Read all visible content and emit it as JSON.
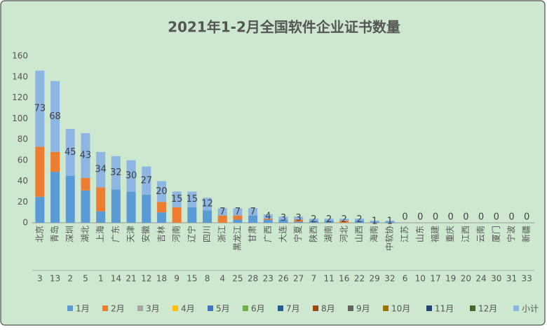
{
  "chart_data": {
    "type": "stacked_bar",
    "title": "2021年1-2月全国软件企业证书数量",
    "categories": [
      "北京",
      "青岛",
      "深圳",
      "湖北",
      "上海",
      "广东",
      "天津",
      "安徽",
      "吉林",
      "河南",
      "辽宁",
      "四川",
      "浙江",
      "黑龙江",
      "甘肃",
      "广西",
      "大连",
      "宁夏",
      "陕西",
      "湖南",
      "河北",
      "山西",
      "海南",
      "中软协",
      "江苏",
      "山东",
      "福建",
      "重庆",
      "江西",
      "云南",
      "厦门",
      "宁波",
      "新疆"
    ],
    "codes": [
      3,
      13,
      2,
      5,
      1,
      14,
      21,
      12,
      18,
      9,
      15,
      8,
      4,
      25,
      28,
      23,
      26,
      27,
      7,
      11,
      16,
      22,
      29,
      32,
      6,
      10,
      17,
      19,
      20,
      24,
      30,
      31,
      33
    ],
    "ylim": [
      0,
      160
    ],
    "yticks": [
      0,
      20,
      40,
      60,
      80,
      100,
      120,
      140,
      160
    ],
    "grid": false,
    "legend": "bottom",
    "series": [
      {
        "name": "1月",
        "color": "#5b9bd5",
        "values": [
          25,
          49,
          45,
          31,
          11,
          32,
          30,
          27,
          10,
          0,
          15,
          12,
          0,
          3,
          7,
          3,
          3,
          1,
          2,
          2,
          0,
          2,
          1,
          1,
          0,
          0,
          0,
          0,
          0,
          0,
          0,
          0,
          0
        ]
      },
      {
        "name": "2月",
        "color": "#ed7d31",
        "values": [
          48,
          19,
          0,
          12,
          23,
          0,
          0,
          0,
          10,
          15,
          0,
          0,
          7,
          4,
          0,
          1,
          0,
          2,
          0,
          0,
          2,
          0,
          0,
          0,
          0,
          0,
          0,
          0,
          0,
          0,
          0,
          0,
          0
        ]
      },
      {
        "name": "3月",
        "color": "#a5a5a5",
        "values": [
          0,
          0,
          0,
          0,
          0,
          0,
          0,
          0,
          0,
          0,
          0,
          0,
          0,
          0,
          0,
          0,
          0,
          0,
          0,
          0,
          0,
          0,
          0,
          0,
          0,
          0,
          0,
          0,
          0,
          0,
          0,
          0,
          0
        ]
      },
      {
        "name": "4月",
        "color": "#ffc000",
        "values": [
          0,
          0,
          0,
          0,
          0,
          0,
          0,
          0,
          0,
          0,
          0,
          0,
          0,
          0,
          0,
          0,
          0,
          0,
          0,
          0,
          0,
          0,
          0,
          0,
          0,
          0,
          0,
          0,
          0,
          0,
          0,
          0,
          0
        ]
      },
      {
        "name": "5月",
        "color": "#4472c4",
        "values": [
          0,
          0,
          0,
          0,
          0,
          0,
          0,
          0,
          0,
          0,
          0,
          0,
          0,
          0,
          0,
          0,
          0,
          0,
          0,
          0,
          0,
          0,
          0,
          0,
          0,
          0,
          0,
          0,
          0,
          0,
          0,
          0,
          0
        ]
      },
      {
        "name": "6月",
        "color": "#70ad47",
        "values": [
          0,
          0,
          0,
          0,
          0,
          0,
          0,
          0,
          0,
          0,
          0,
          0,
          0,
          0,
          0,
          0,
          0,
          0,
          0,
          0,
          0,
          0,
          0,
          0,
          0,
          0,
          0,
          0,
          0,
          0,
          0,
          0,
          0
        ]
      },
      {
        "name": "7月",
        "color": "#255e91",
        "values": [
          0,
          0,
          0,
          0,
          0,
          0,
          0,
          0,
          0,
          0,
          0,
          0,
          0,
          0,
          0,
          0,
          0,
          0,
          0,
          0,
          0,
          0,
          0,
          0,
          0,
          0,
          0,
          0,
          0,
          0,
          0,
          0,
          0
        ]
      },
      {
        "name": "8月",
        "color": "#9e480e",
        "values": [
          0,
          0,
          0,
          0,
          0,
          0,
          0,
          0,
          0,
          0,
          0,
          0,
          0,
          0,
          0,
          0,
          0,
          0,
          0,
          0,
          0,
          0,
          0,
          0,
          0,
          0,
          0,
          0,
          0,
          0,
          0,
          0,
          0
        ]
      },
      {
        "name": "9月",
        "color": "#636363",
        "values": [
          0,
          0,
          0,
          0,
          0,
          0,
          0,
          0,
          0,
          0,
          0,
          0,
          0,
          0,
          0,
          0,
          0,
          0,
          0,
          0,
          0,
          0,
          0,
          0,
          0,
          0,
          0,
          0,
          0,
          0,
          0,
          0,
          0
        ]
      },
      {
        "name": "10月",
        "color": "#997300",
        "values": [
          0,
          0,
          0,
          0,
          0,
          0,
          0,
          0,
          0,
          0,
          0,
          0,
          0,
          0,
          0,
          0,
          0,
          0,
          0,
          0,
          0,
          0,
          0,
          0,
          0,
          0,
          0,
          0,
          0,
          0,
          0,
          0,
          0
        ]
      },
      {
        "name": "11月",
        "color": "#264478",
        "values": [
          0,
          0,
          0,
          0,
          0,
          0,
          0,
          0,
          0,
          0,
          0,
          0,
          0,
          0,
          0,
          0,
          0,
          0,
          0,
          0,
          0,
          0,
          0,
          0,
          0,
          0,
          0,
          0,
          0,
          0,
          0,
          0,
          0
        ]
      },
      {
        "name": "12月",
        "color": "#43682b",
        "values": [
          0,
          0,
          0,
          0,
          0,
          0,
          0,
          0,
          0,
          0,
          0,
          0,
          0,
          0,
          0,
          0,
          0,
          0,
          0,
          0,
          0,
          0,
          0,
          0,
          0,
          0,
          0,
          0,
          0,
          0,
          0,
          0,
          0
        ]
      },
      {
        "name": "小计",
        "color": "#8db6e2",
        "labels": true,
        "values": [
          73,
          68,
          45,
          43,
          34,
          32,
          30,
          27,
          20,
          15,
          15,
          12,
          7,
          7,
          7,
          4,
          3,
          3,
          2,
          2,
          2,
          2,
          1,
          1,
          0,
          0,
          0,
          0,
          0,
          0,
          0,
          0,
          0
        ]
      }
    ]
  }
}
